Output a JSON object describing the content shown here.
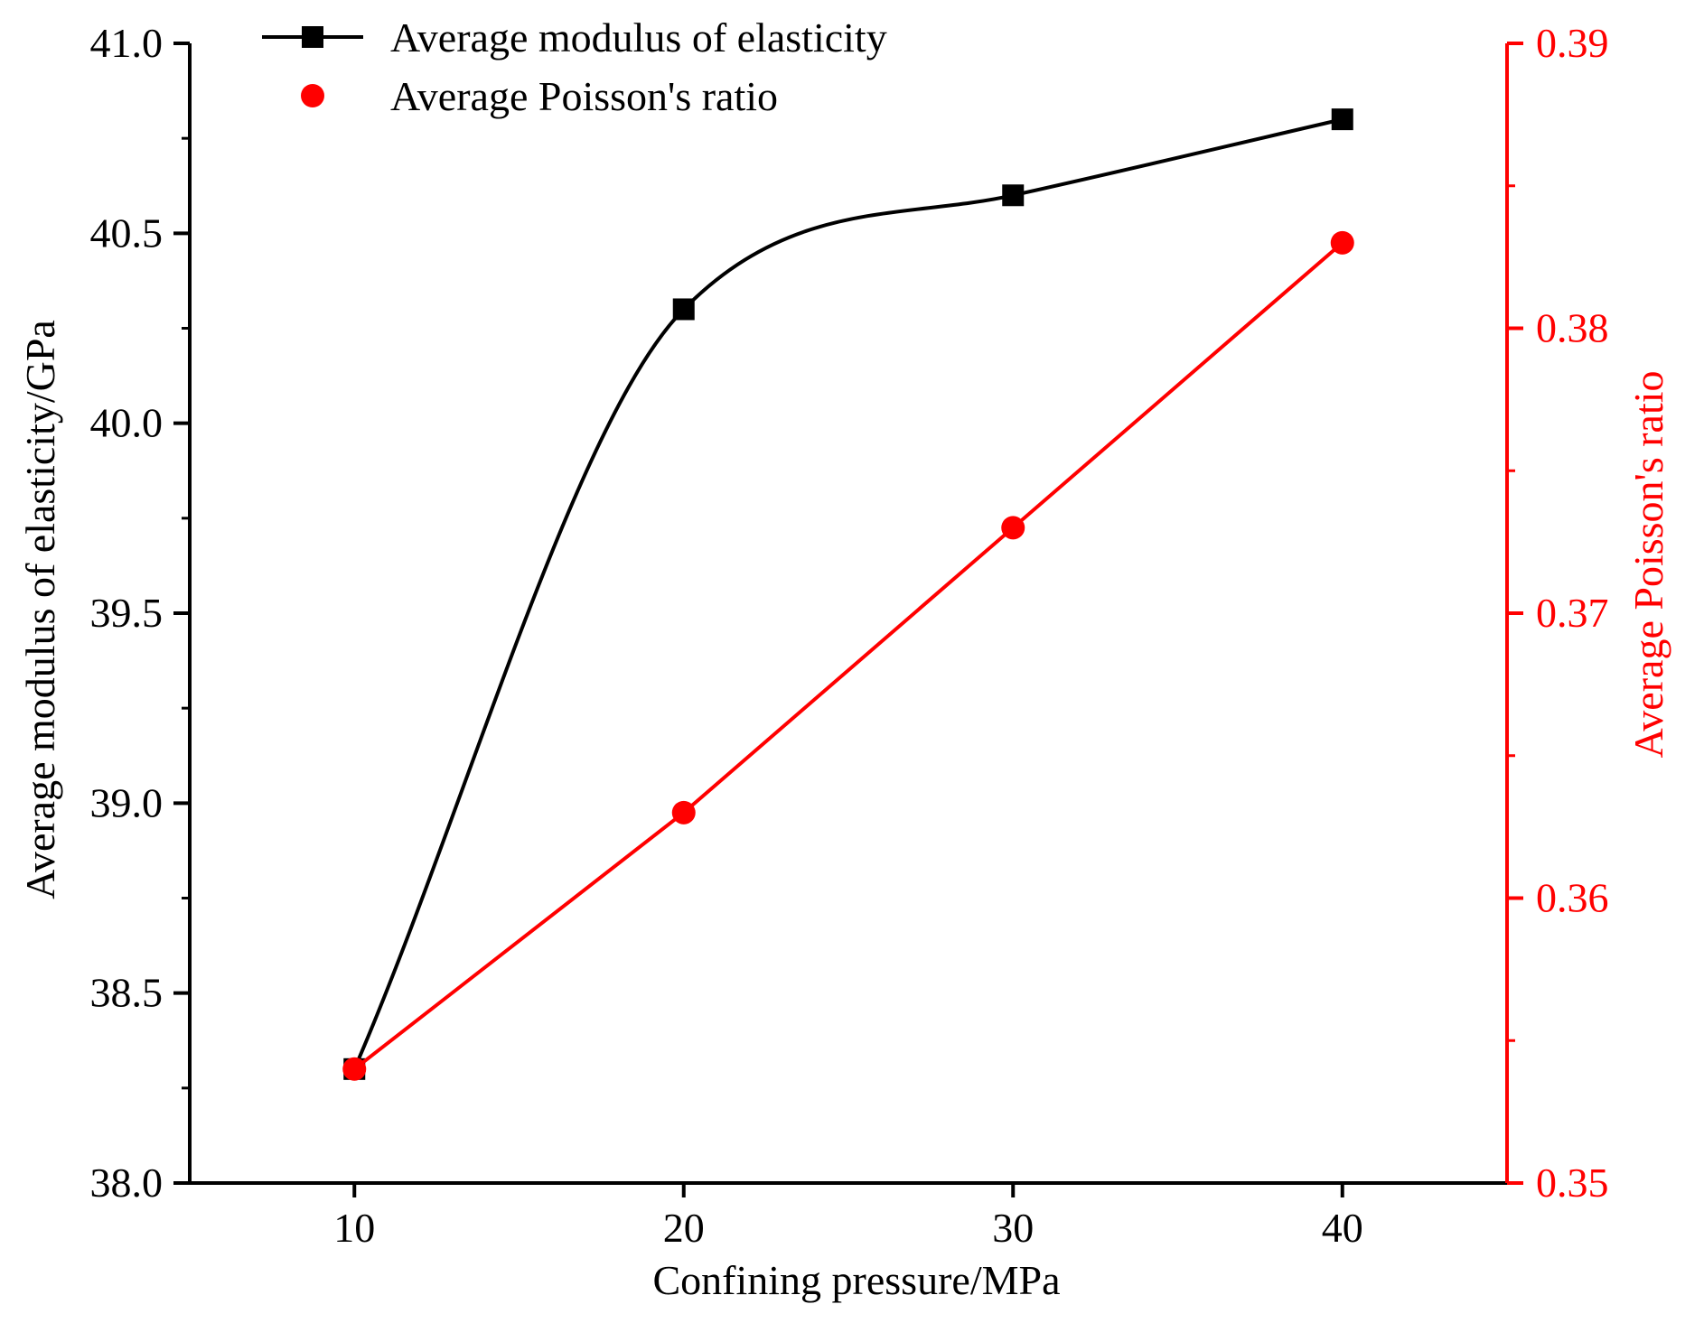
{
  "chart_data": {
    "type": "line",
    "x": [
      10,
      20,
      30,
      40
    ],
    "xlabel": "Confining pressure/MPa",
    "xticks": [
      "10",
      "20",
      "30",
      "40"
    ],
    "xlim": [
      5,
      45
    ],
    "ylabel_left": "Average modulus of elasticity/GPa",
    "yticks_left": [
      "38.0",
      "38.5",
      "39.0",
      "39.5",
      "40.0",
      "40.5",
      "41.0"
    ],
    "ylim_left": [
      38.0,
      41.0
    ],
    "ylabel_right": "Average Poisson's ratio",
    "yticks_right": [
      "0.35",
      "0.36",
      "0.37",
      "0.38",
      "0.39"
    ],
    "ylim_right": [
      0.35,
      0.39
    ],
    "grid": false,
    "legend_position": "top-left",
    "series": [
      {
        "name": "Average modulus of elasticity",
        "axis": "left",
        "values": [
          38.3,
          40.3,
          40.6,
          40.8
        ],
        "marker": "square",
        "line": "smooth",
        "color": "#000000"
      },
      {
        "name": "Average Poisson's ratio",
        "axis": "right",
        "values": [
          0.354,
          0.363,
          0.373,
          0.383
        ],
        "marker": "circle",
        "line": "straight",
        "color": "#ff0000"
      }
    ]
  }
}
